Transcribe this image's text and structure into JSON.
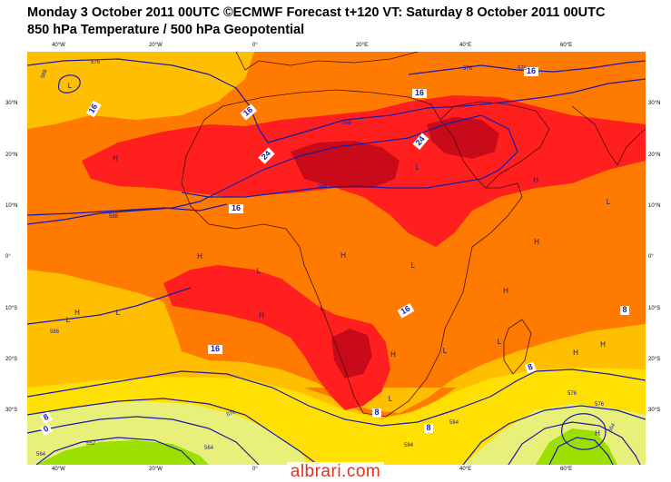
{
  "header": {
    "title_line1": "Monday 3 October 2011 00UTC ©ECMWF Forecast t+120 VT: Saturday 8 October 2011 00UTC",
    "title_line2": "850 hPa Temperature / 500 hPa Geopotential"
  },
  "axes": {
    "lon_labels_top": [
      "40°W",
      "20°W",
      "0°",
      "20°E",
      "40°E",
      "60°E"
    ],
    "lon_labels_bottom": [
      "40°W",
      "20°W",
      "0°",
      "20°E",
      "40°E",
      "60°E"
    ],
    "lat_labels_left": [
      "30°N",
      "20°N",
      "10°N",
      "0°",
      "10°S",
      "20°S",
      "30°S"
    ],
    "lat_labels_right": [
      "30°N",
      "20°N",
      "10°N",
      "0°",
      "10°S",
      "20°S",
      "30°S"
    ]
  },
  "map": {
    "colors": {
      "below_8": "#9be000",
      "from_8_to_12": "#e8f07a",
      "from_12_to_16": "#ffe000",
      "from_16_to_20": "#ffbf00",
      "from_20_to_24": "#ff7a00",
      "from_24_to_28": "#ff1f1f",
      "above_28": "#c80a1a",
      "contour": "#1a1aa8",
      "coast": "#4a1010"
    },
    "temperature_labels": [
      "16",
      "16",
      "24",
      "24",
      "16",
      "16",
      "16",
      "16",
      "8",
      "8",
      "8",
      "8",
      "0",
      "8",
      "16"
    ],
    "geopotential_labels": [
      "588",
      "588",
      "588",
      "588",
      "576",
      "576",
      "588",
      "584",
      "576",
      "564",
      "552",
      "564",
      "576",
      "584",
      "576",
      "564",
      "576"
    ],
    "pressure_centres": [
      "L",
      "L",
      "H",
      "H",
      "L",
      "H",
      "L",
      "L",
      "H",
      "H",
      "L",
      "H",
      "L",
      "H",
      "H",
      "H",
      "L",
      "H",
      "L",
      "L",
      "H",
      "H",
      "L"
    ]
  },
  "watermark": "albrari.com"
}
